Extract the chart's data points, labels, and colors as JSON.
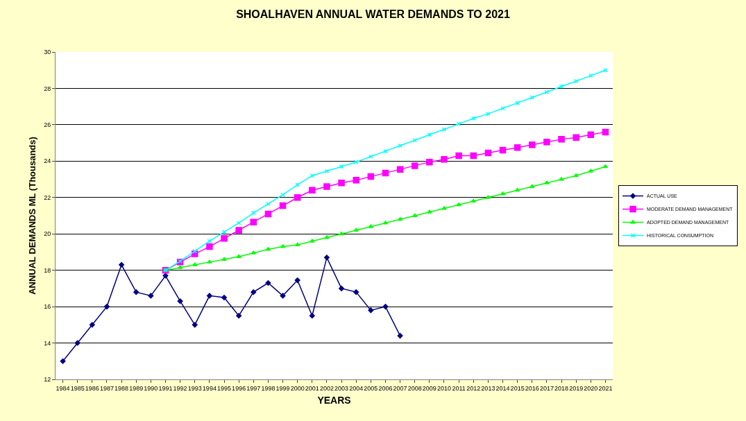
{
  "chart_data": {
    "type": "line",
    "title": "SHOALHAVEN ANNUAL WATER DEMANDS TO 2021",
    "xlabel": "YEARS",
    "ylabel": "ANNUAL DEMANDS ML (Thousands)",
    "categories": [
      "1984",
      "1985",
      "1986",
      "1987",
      "1988",
      "1989",
      "1990",
      "1991",
      "1992",
      "1993",
      "1994",
      "1995",
      "1996",
      "1997",
      "1998",
      "1999",
      "2000",
      "2001",
      "2002",
      "2003",
      "2004",
      "2005",
      "2006",
      "2007",
      "2008",
      "2009",
      "2010",
      "2011",
      "2012",
      "2013",
      "2014",
      "2015",
      "2016",
      "2017",
      "2018",
      "2019",
      "2020",
      "2021"
    ],
    "ylim": [
      12,
      30
    ],
    "yticks": [
      12,
      14,
      16,
      18,
      20,
      22,
      24,
      26,
      28,
      30
    ],
    "grid": "y",
    "legend": "right",
    "line_style": "solid",
    "series": [
      {
        "name": "ACTUAL USE",
        "color": "#000080",
        "marker": "diamond",
        "values": [
          13,
          14,
          15,
          16,
          18.3,
          16.8,
          16.6,
          17.7,
          16.3,
          15,
          16.6,
          16.5,
          15.5,
          16.8,
          17.3,
          16.6,
          17.45,
          15.5,
          18.7,
          17,
          16.8,
          15.8,
          16,
          14.4,
          null,
          null,
          null,
          null,
          null,
          null,
          null,
          null,
          null,
          null,
          null,
          null,
          null,
          null
        ]
      },
      {
        "name": "MODERATE DEMAND MANAGEMENT",
        "color": "#ff00ff",
        "marker": "square",
        "values": [
          null,
          null,
          null,
          null,
          null,
          null,
          null,
          18,
          18.45,
          18.9,
          19.3,
          19.75,
          20.2,
          20.65,
          21.1,
          21.55,
          22,
          22.4,
          22.6,
          22.8,
          22.95,
          23.15,
          23.35,
          23.55,
          23.75,
          23.95,
          24.1,
          24.3,
          24.3,
          24.45,
          24.6,
          24.75,
          24.9,
          25.05,
          25.2,
          25.3,
          25.45,
          25.6
        ]
      },
      {
        "name": "ADOPTED DEMAND MANAGEMENT",
        "color": "#00ff00",
        "marker": "triangle",
        "values": [
          null,
          null,
          null,
          null,
          null,
          null,
          null,
          18,
          18.15,
          18.3,
          18.45,
          18.6,
          18.75,
          18.95,
          19.15,
          19.3,
          19.4,
          19.6,
          19.8,
          20,
          20.2,
          20.4,
          20.6,
          20.8,
          21,
          21.2,
          21.4,
          21.6,
          21.8,
          22,
          22.2,
          22.4,
          22.6,
          22.8,
          23,
          23.2,
          23.45,
          23.7
        ]
      },
      {
        "name": "HISTORICAL CONSUMPTION",
        "color": "#00ffff",
        "marker": "cross",
        "values": [
          null,
          null,
          null,
          null,
          null,
          null,
          null,
          18,
          18.5,
          19.05,
          19.6,
          20.1,
          20.6,
          21.15,
          21.65,
          22.15,
          22.7,
          23.2,
          23.45,
          23.7,
          23.95,
          24.25,
          24.55,
          24.85,
          25.15,
          25.45,
          25.75,
          26.05,
          26.35,
          26.6,
          26.9,
          27.2,
          27.5,
          27.8,
          28.1,
          28.4,
          28.7,
          29
        ]
      }
    ]
  }
}
